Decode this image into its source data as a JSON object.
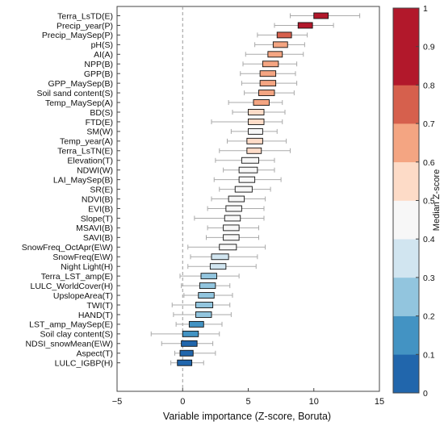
{
  "chart_data": {
    "type": "boxplot",
    "orientation": "horizontal",
    "xlabel": "Variable importance (Z-score, Boruta)",
    "ylabel": "",
    "xlim": [
      -5,
      15
    ],
    "xticks": [
      -5,
      0,
      5,
      10,
      15
    ],
    "reference_line": {
      "x": 0,
      "style": "dashed",
      "color": "#999999"
    },
    "colorbar": {
      "label": "Median Z-score",
      "range": [
        0,
        1
      ],
      "ticks": [
        "0",
        "0.1",
        "0.2",
        "0.3",
        "0.4",
        "0.5",
        "0.6",
        "0.7",
        "0.8",
        "0.9",
        "1"
      ],
      "colors": [
        "#2166ac",
        "#4393c3",
        "#92c5de",
        "#d1e5f0",
        "#f7f7f7",
        "#fddbc7",
        "#f4a582",
        "#d6604d",
        "#b2182b",
        "#b2182b"
      ]
    },
    "variables": [
      {
        "name": "Terra_LsTD(E)",
        "wl": 8.2,
        "q1": 10.0,
        "q3": 11.1,
        "wh": 13.5,
        "score": 0.95
      },
      {
        "name": "Precip_year(P)",
        "wl": 7.0,
        "q1": 8.8,
        "q3": 9.9,
        "wh": 11.5,
        "score": 0.85
      },
      {
        "name": "Precip_MaySep(P)",
        "wl": 5.7,
        "q1": 7.2,
        "q3": 8.3,
        "wh": 9.5,
        "score": 0.75
      },
      {
        "name": "pH(S)",
        "wl": 5.5,
        "q1": 6.9,
        "q3": 8.0,
        "wh": 9.3,
        "score": 0.65
      },
      {
        "name": "AI(A)",
        "wl": 4.8,
        "q1": 6.5,
        "q3": 7.6,
        "wh": 9.2,
        "score": 0.65
      },
      {
        "name": "NPP(B)",
        "wl": 4.6,
        "q1": 6.1,
        "q3": 7.3,
        "wh": 8.7,
        "score": 0.65
      },
      {
        "name": "GPP(B)",
        "wl": 4.4,
        "q1": 5.9,
        "q3": 7.1,
        "wh": 8.6,
        "score": 0.65
      },
      {
        "name": "GPP_MaySep(B)",
        "wl": 4.5,
        "q1": 5.9,
        "q3": 7.1,
        "wh": 8.7,
        "score": 0.65
      },
      {
        "name": "Soil sand content(S)",
        "wl": 4.7,
        "q1": 5.8,
        "q3": 7.0,
        "wh": 8.5,
        "score": 0.65
      },
      {
        "name": "Temp_MaySep(A)",
        "wl": 3.5,
        "q1": 5.4,
        "q3": 6.6,
        "wh": 7.6,
        "score": 0.65
      },
      {
        "name": "BD(S)",
        "wl": 3.8,
        "q1": 5.0,
        "q3": 6.2,
        "wh": 7.8,
        "score": 0.55
      },
      {
        "name": "FTD(E)",
        "wl": 2.2,
        "q1": 5.0,
        "q3": 6.2,
        "wh": 7.6,
        "score": 0.55
      },
      {
        "name": "SM(W)",
        "wl": 3.7,
        "q1": 5.0,
        "q3": 6.1,
        "wh": 7.2,
        "score": 0.45
      },
      {
        "name": "Temp_year(A)",
        "wl": 3.4,
        "q1": 4.9,
        "q3": 6.1,
        "wh": 7.9,
        "score": 0.55
      },
      {
        "name": "Terra_LsTN(E)",
        "wl": 2.8,
        "q1": 4.9,
        "q3": 6.0,
        "wh": 8.2,
        "score": 0.55
      },
      {
        "name": "Elevation(T)",
        "wl": 2.5,
        "q1": 4.5,
        "q3": 5.8,
        "wh": 7.0,
        "score": 0.45
      },
      {
        "name": "NDWI(W)",
        "wl": 3.1,
        "q1": 4.3,
        "q3": 5.7,
        "wh": 7.0,
        "score": 0.45
      },
      {
        "name": "LAI_MaySep(B)",
        "wl": 2.4,
        "q1": 4.3,
        "q3": 5.5,
        "wh": 7.5,
        "score": 0.45
      },
      {
        "name": "SR(E)",
        "wl": 2.8,
        "q1": 4.0,
        "q3": 5.3,
        "wh": 6.7,
        "score": 0.4
      },
      {
        "name": "NDVI(B)",
        "wl": 2.2,
        "q1": 3.5,
        "q3": 4.7,
        "wh": 6.3,
        "score": 0.4
      },
      {
        "name": "EVI(B)",
        "wl": 1.9,
        "q1": 3.3,
        "q3": 4.5,
        "wh": 6.2,
        "score": 0.4
      },
      {
        "name": "Slope(T)",
        "wl": 0.9,
        "q1": 3.2,
        "q3": 4.4,
        "wh": 6.2,
        "score": 0.45
      },
      {
        "name": "MSAVI(B)",
        "wl": 1.9,
        "q1": 3.1,
        "q3": 4.3,
        "wh": 5.8,
        "score": 0.4
      },
      {
        "name": "SAVI(B)",
        "wl": 1.8,
        "q1": 3.1,
        "q3": 4.3,
        "wh": 5.8,
        "score": 0.4
      },
      {
        "name": "SnowFreq_OctApr(E\\W)",
        "wl": 0.4,
        "q1": 2.8,
        "q3": 4.1,
        "wh": 6.3,
        "score": 0.45
      },
      {
        "name": "SnowFreq(E\\W)",
        "wl": 0.6,
        "q1": 2.2,
        "q3": 3.5,
        "wh": 5.7,
        "score": 0.35
      },
      {
        "name": "Night Light(H)",
        "wl": 0.4,
        "q1": 2.1,
        "q3": 3.3,
        "wh": 5.6,
        "score": 0.35
      },
      {
        "name": "Terra_LST_amp(E)",
        "wl": -0.2,
        "q1": 1.4,
        "q3": 2.6,
        "wh": 4.3,
        "score": 0.25
      },
      {
        "name": "LULC_WorldCover(H)",
        "wl": -0.1,
        "q1": 1.3,
        "q3": 2.5,
        "wh": 3.6,
        "score": 0.25
      },
      {
        "name": "UpslopeArea(T)",
        "wl": 0.1,
        "q1": 1.2,
        "q3": 2.4,
        "wh": 3.8,
        "score": 0.25
      },
      {
        "name": "TWI(T)",
        "wl": -0.8,
        "q1": 1.0,
        "q3": 2.3,
        "wh": 3.6,
        "score": 0.25
      },
      {
        "name": "HAND(T)",
        "wl": -0.7,
        "q1": 1.0,
        "q3": 2.2,
        "wh": 3.7,
        "score": 0.25
      },
      {
        "name": "LST_amp_MaySep(E)",
        "wl": -0.5,
        "q1": 0.5,
        "q3": 1.6,
        "wh": 3.0,
        "score": 0.15
      },
      {
        "name": "Soil clay content(S)",
        "wl": -2.4,
        "q1": 0.0,
        "q3": 1.2,
        "wh": 2.8,
        "score": 0.15
      },
      {
        "name": "NDSI_snowMean(E\\W)",
        "wl": -1.6,
        "q1": -0.1,
        "q3": 1.1,
        "wh": 2.3,
        "score": 0.05
      },
      {
        "name": "Aspect(T)",
        "wl": -0.6,
        "q1": -0.2,
        "q3": 0.8,
        "wh": 2.5,
        "score": 0.05
      },
      {
        "name": "LULC_IGBP(H)",
        "wl": -0.9,
        "q1": -0.4,
        "q3": 0.7,
        "wh": 1.6,
        "score": 0.05
      }
    ]
  }
}
